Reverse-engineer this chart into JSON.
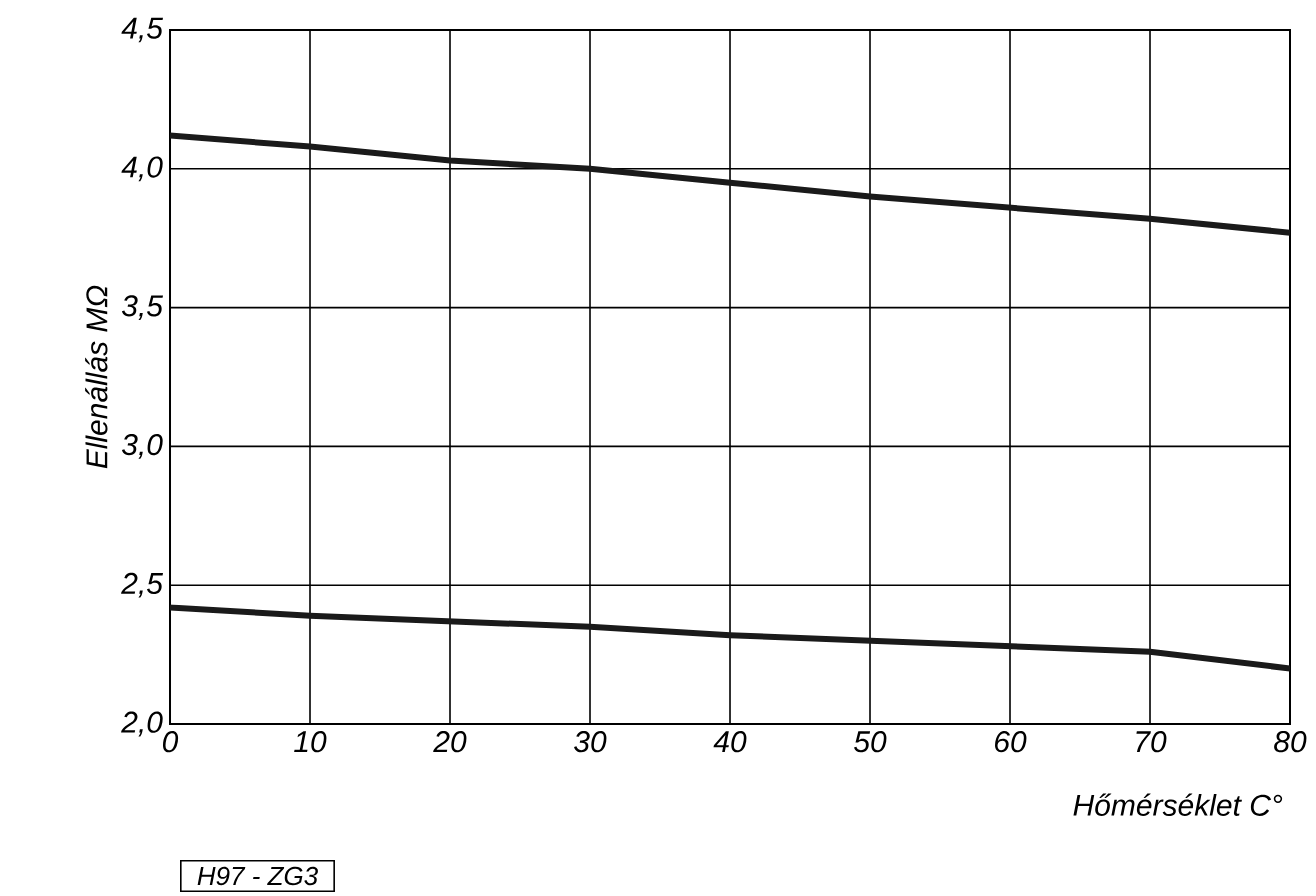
{
  "chart_data": {
    "type": "line",
    "xlabel": "Hőmérséklet C°",
    "ylabel": "Ellenállás MΩ",
    "x": [
      0,
      10,
      20,
      30,
      40,
      50,
      60,
      70,
      80
    ],
    "series": [
      {
        "color": "#1a1a1a",
        "values": [
          4.12,
          4.08,
          4.03,
          4.0,
          3.95,
          3.9,
          3.86,
          3.82,
          3.77
        ]
      },
      {
        "color": "#1a1a1a",
        "values": [
          2.42,
          2.39,
          2.37,
          2.35,
          2.32,
          2.3,
          2.28,
          2.26,
          2.2
        ]
      }
    ],
    "xlim": [
      0,
      80
    ],
    "ylim": [
      2.0,
      4.5
    ],
    "xticks": [
      0,
      10,
      20,
      30,
      40,
      50,
      60,
      70,
      80
    ],
    "yticks": [
      {
        "value": 2.0,
        "label": "2,0"
      },
      {
        "value": 2.5,
        "label": "2,5"
      },
      {
        "value": 3.0,
        "label": "3,0"
      },
      {
        "value": 3.5,
        "label": "3,5"
      },
      {
        "value": 4.0,
        "label": "4,0"
      },
      {
        "value": 4.5,
        "label": "4,5"
      }
    ],
    "grid": true,
    "marker": "none",
    "line_style": "solid",
    "annotations": [
      "H97 - ZG3"
    ]
  }
}
